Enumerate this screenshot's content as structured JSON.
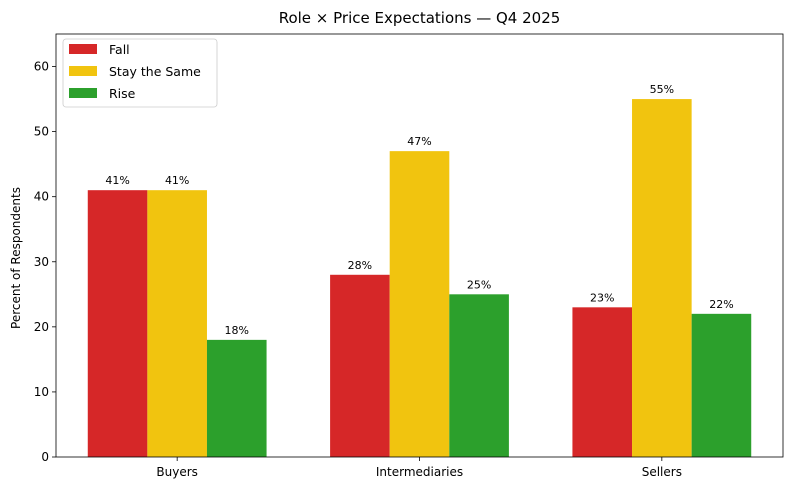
{
  "chart_data": {
    "type": "bar",
    "title": "Role × Price Expectations — Q4 2025",
    "xlabel": "",
    "ylabel": "Percent of Respondents",
    "ylim": [
      0,
      65
    ],
    "yticks": [
      0,
      10,
      20,
      30,
      40,
      50,
      60
    ],
    "categories": [
      "Buyers",
      "Intermediaries",
      "Sellers"
    ],
    "series": [
      {
        "name": "Fall",
        "color": "#d62728",
        "values": [
          41,
          28,
          23
        ],
        "labels": [
          "41%",
          "28%",
          "23%"
        ]
      },
      {
        "name": "Stay the Same",
        "color": "#f1c40f",
        "values": [
          41,
          47,
          55
        ],
        "labels": [
          "41%",
          "47%",
          "55%"
        ]
      },
      {
        "name": "Rise",
        "color": "#2ca02c",
        "values": [
          18,
          25,
          22
        ],
        "labels": [
          "18%",
          "25%",
          "22%"
        ]
      }
    ],
    "legend": "top-left",
    "grid": false
  }
}
